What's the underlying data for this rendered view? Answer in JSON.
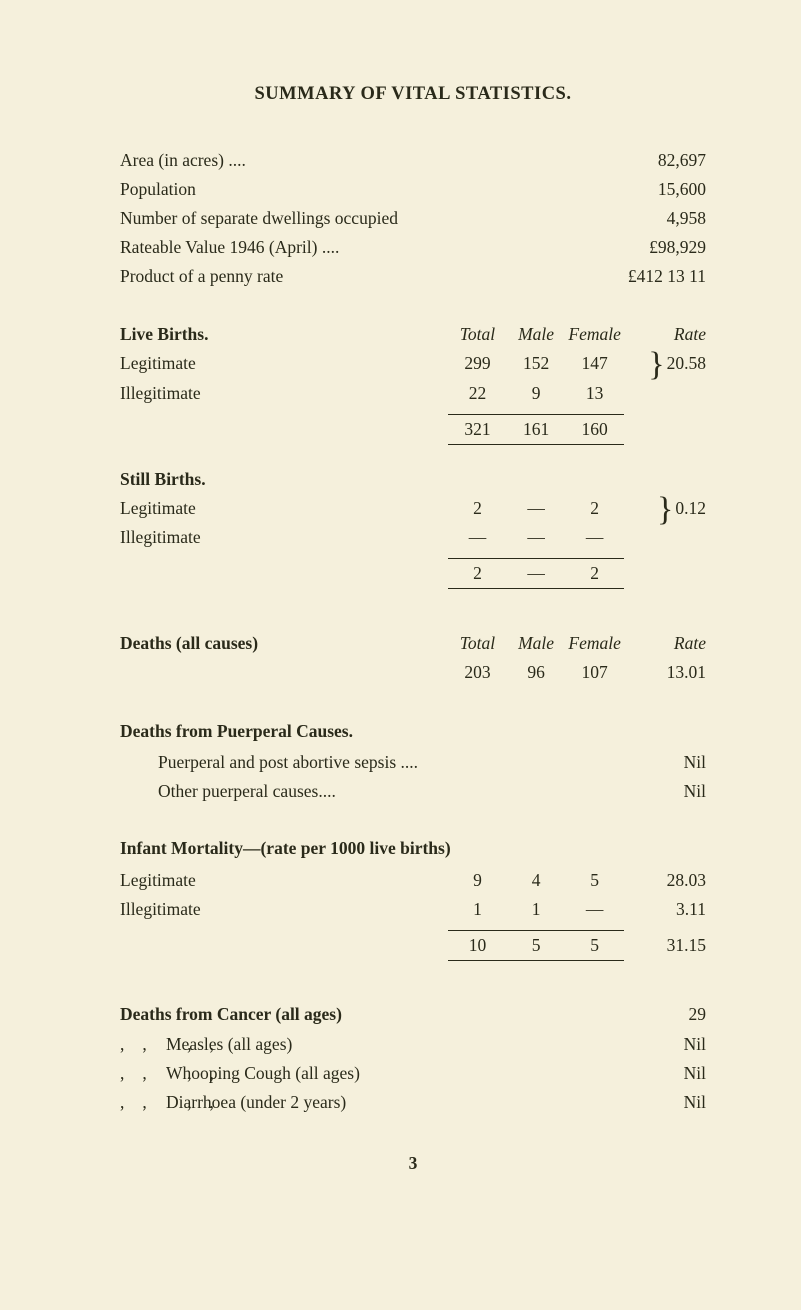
{
  "title": "SUMMARY OF VITAL STATISTICS.",
  "topRows": [
    {
      "label": "Area (in acres) ....",
      "value": "82,697"
    },
    {
      "label": "Population",
      "value": "15,600"
    },
    {
      "label": "Number of separate dwellings occupied",
      "value": "4,958"
    },
    {
      "label": "Rateable Value 1946 (April) ....",
      "value": "£98,929"
    },
    {
      "label": "Product of a penny rate",
      "value": "£412 13 11"
    }
  ],
  "liveBirths": {
    "head": "Live Births.",
    "cols": {
      "c1": "Total",
      "c2": "Male",
      "c3": "Female",
      "c4": "Rate"
    },
    "rows": [
      {
        "label": "Legitimate",
        "c1": "299",
        "c2": "152",
        "c3": "147"
      },
      {
        "label": "Illegitimate",
        "c1": "22",
        "c2": "9",
        "c3": "13"
      }
    ],
    "rate": "20.58",
    "total": {
      "c1": "321",
      "c2": "161",
      "c3": "160"
    }
  },
  "stillBirths": {
    "head": "Still Births.",
    "rows": [
      {
        "label": "Legitimate",
        "c1": "2",
        "c2": "—",
        "c3": "2"
      },
      {
        "label": "Illegitimate",
        "c1": "—",
        "c2": "—",
        "c3": "—"
      }
    ],
    "rate": "0.12",
    "total": {
      "c1": "2",
      "c2": "—",
      "c3": "2"
    }
  },
  "deathsAll": {
    "head": "Deaths (all causes)",
    "cols": {
      "c1": "Total",
      "c2": "Male",
      "c3": "Female",
      "c4": "Rate"
    },
    "row": {
      "c1": "203",
      "c2": "96",
      "c3": "107",
      "c4": "13.01"
    }
  },
  "puerperal": {
    "head": "Deaths from Puerperal Causes.",
    "rows": [
      {
        "label": "Puerperal and post abortive sepsis ....",
        "value": "Nil"
      },
      {
        "label": "Other puerperal causes....",
        "value": "Nil"
      }
    ]
  },
  "infant": {
    "head": "Infant Mortality—(rate per 1000 live births)",
    "rows": [
      {
        "label": "Legitimate",
        "c1": "9",
        "c2": "4",
        "c3": "5",
        "c4": "28.03"
      },
      {
        "label": "Illegitimate",
        "c1": "1",
        "c2": "1",
        "c3": "—",
        "c4": "3.11"
      }
    ],
    "total": {
      "c1": "10",
      "c2": "5",
      "c3": "5",
      "c4": "31.15"
    }
  },
  "deathsFrom": {
    "rows": [
      {
        "label": "Deaths from Cancer (all ages)",
        "value": "29",
        "bold": true
      },
      {
        "label": "Measles (all ages)",
        "value": "Nil"
      },
      {
        "label": "Whooping Cough (all ages)",
        "value": "Nil"
      },
      {
        "label": "Diarrhoea (under 2 years)",
        "value": "Nil"
      }
    ],
    "ditto": ",,    ,,"
  },
  "pageNumber": "3"
}
